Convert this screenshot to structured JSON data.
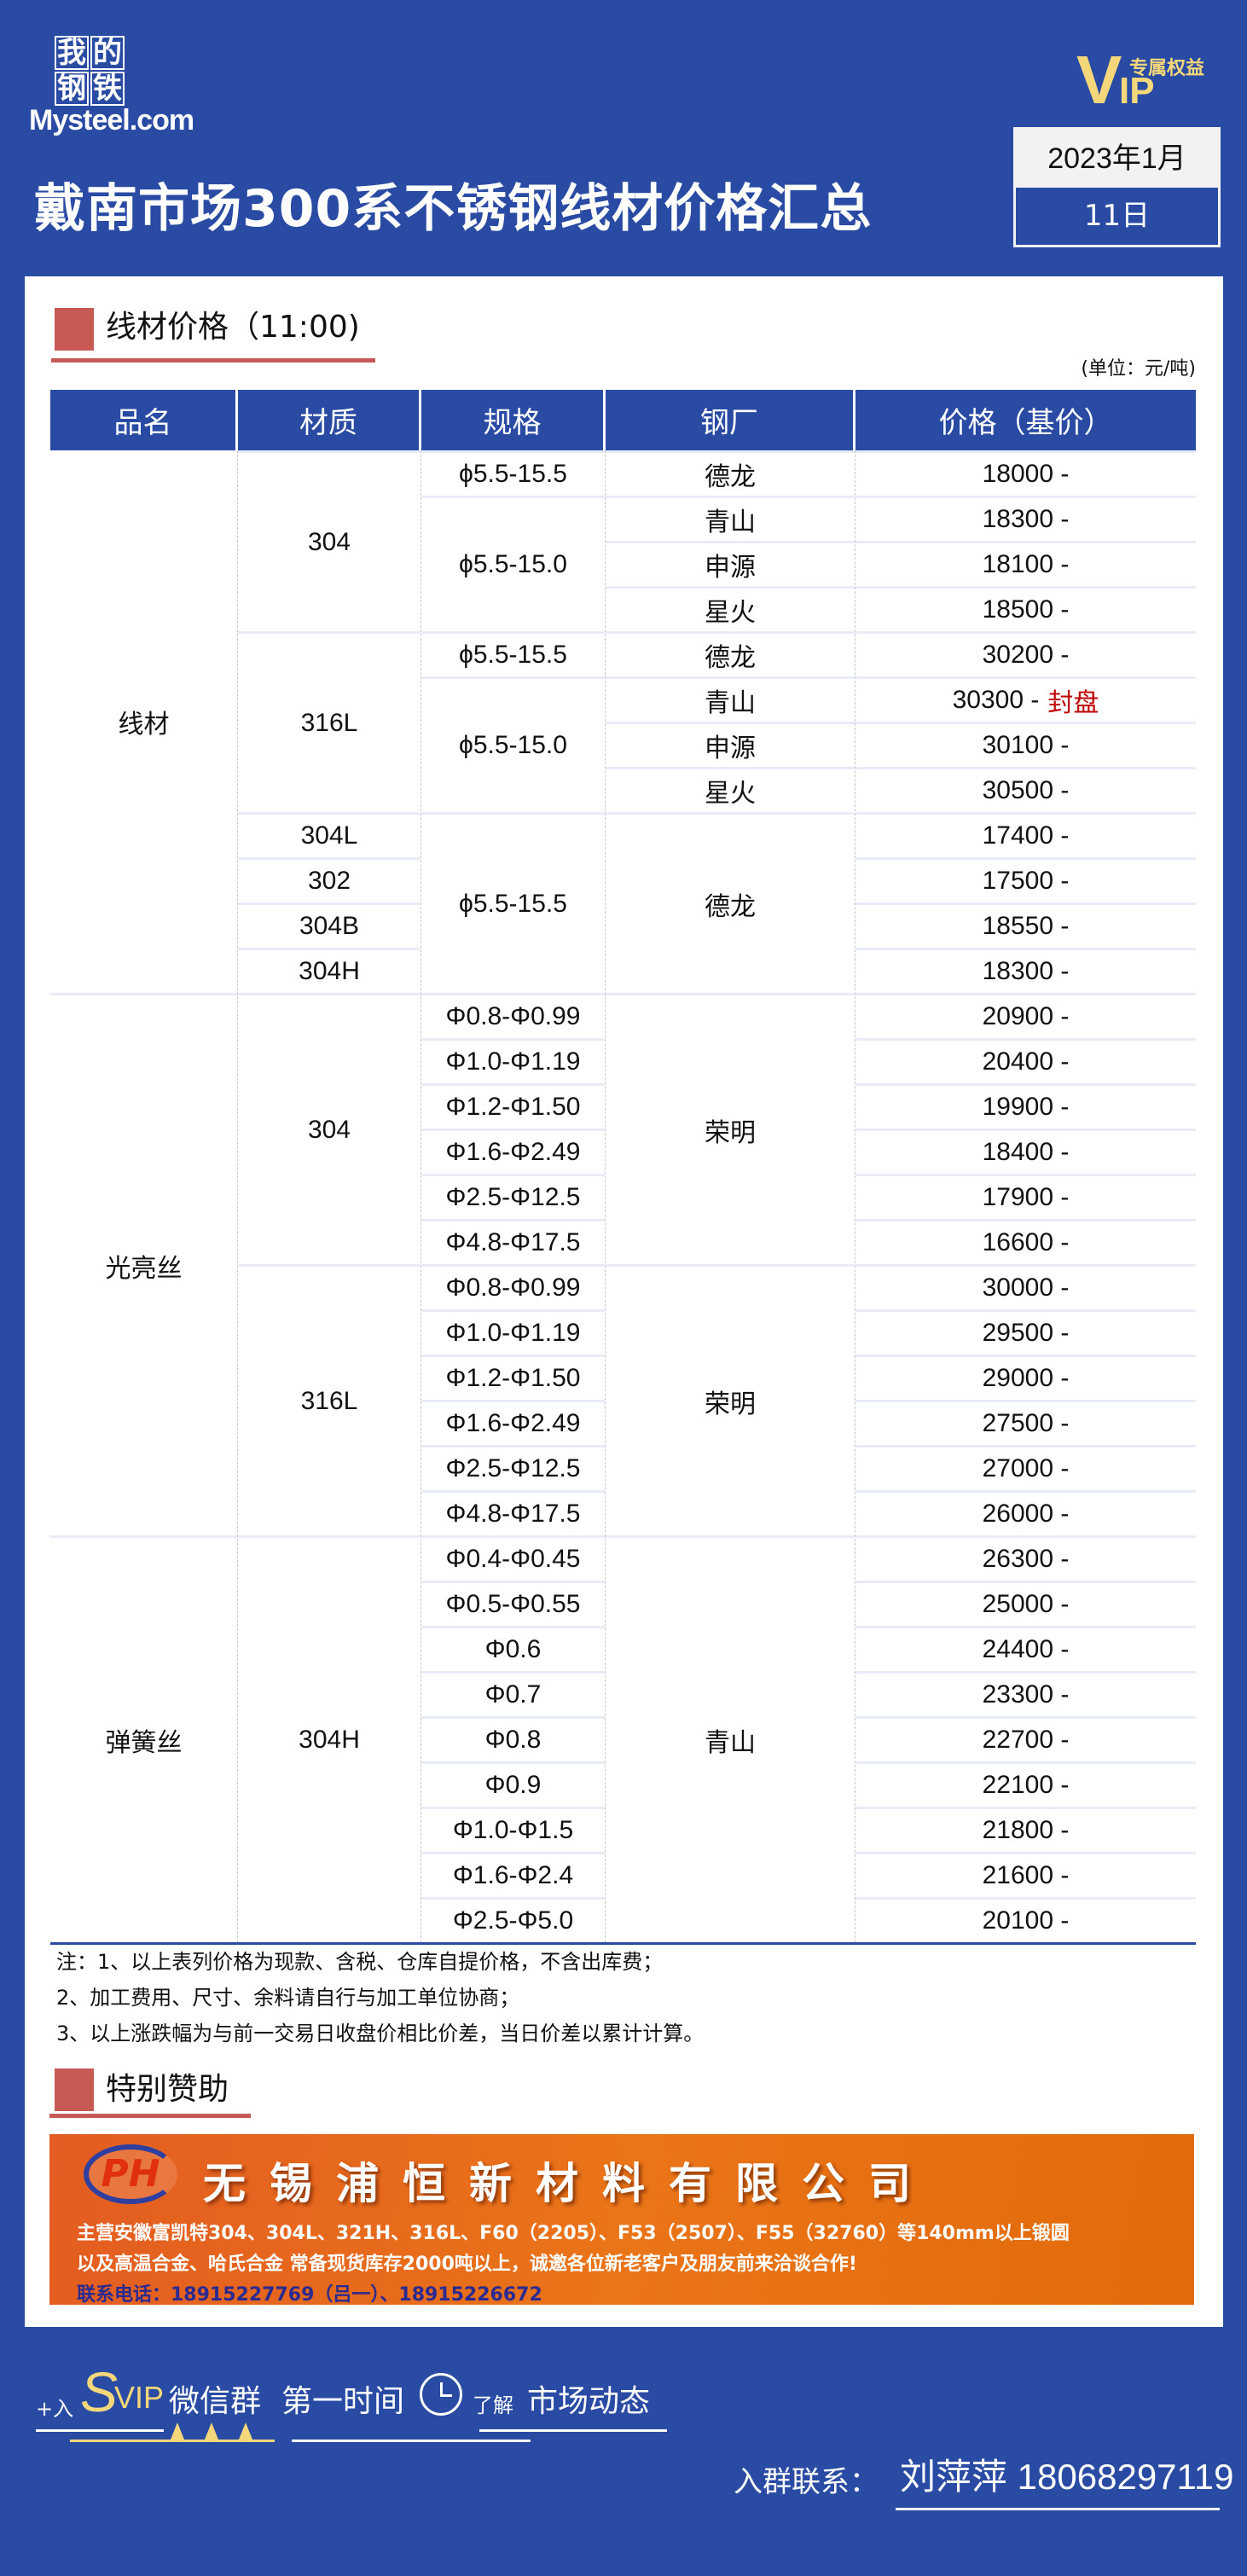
{
  "brand": {
    "logo_chars": [
      "我",
      "的",
      "钢",
      "铁"
    ],
    "logo_text": "Mysteel.com",
    "vip_letter_v": "V",
    "vip_letter_ip": "IP",
    "vip_tag": "专属权益"
  },
  "header": {
    "title": "戴南市场300系不锈钢线材价格汇总",
    "date_year_month": "2023年1月",
    "date_day": "11日"
  },
  "section1": {
    "title": "线材价格（11:00)",
    "unit": "(单位：元/吨)"
  },
  "table": {
    "headers": [
      "品名",
      "材质",
      "规格",
      "钢厂",
      "价格（基价）"
    ],
    "products": [
      {
        "v": "线材",
        "rows": 12
      },
      {
        "v": "光亮丝",
        "rows": 12
      },
      {
        "v": "弹簧丝",
        "rows": 9
      }
    ],
    "grades": [
      {
        "v": "304",
        "rows": 4
      },
      {
        "v": "316L",
        "rows": 4
      },
      {
        "v": "304L",
        "rows": 1
      },
      {
        "v": "302",
        "rows": 1
      },
      {
        "v": "304B",
        "rows": 1
      },
      {
        "v": "304H",
        "rows": 1
      },
      {
        "v": "304",
        "rows": 6
      },
      {
        "v": "316L",
        "rows": 6
      },
      {
        "v": "304H",
        "rows": 9
      }
    ],
    "specs": [
      {
        "v": "ϕ5.5-15.5",
        "rows": 1
      },
      {
        "v": "ϕ5.5-15.0",
        "rows": 3
      },
      {
        "v": "ϕ5.5-15.5",
        "rows": 1
      },
      {
        "v": "ϕ5.5-15.0",
        "rows": 3
      },
      {
        "v": "ϕ5.5-15.5",
        "rows": 4
      },
      {
        "v": "Φ0.8-Φ0.99",
        "rows": 1
      },
      {
        "v": "Φ1.0-Φ1.19",
        "rows": 1
      },
      {
        "v": "Φ1.2-Φ1.50",
        "rows": 1
      },
      {
        "v": "Φ1.6-Φ2.49",
        "rows": 1
      },
      {
        "v": "Φ2.5-Φ12.5",
        "rows": 1
      },
      {
        "v": "Φ4.8-Φ17.5",
        "rows": 1
      },
      {
        "v": "Φ0.8-Φ0.99",
        "rows": 1
      },
      {
        "v": "Φ1.0-Φ1.19",
        "rows": 1
      },
      {
        "v": "Φ1.2-Φ1.50",
        "rows": 1
      },
      {
        "v": "Φ1.6-Φ2.49",
        "rows": 1
      },
      {
        "v": "Φ2.5-Φ12.5",
        "rows": 1
      },
      {
        "v": "Φ4.8-Φ17.5",
        "rows": 1
      },
      {
        "v": "Φ0.4-Φ0.45",
        "rows": 1
      },
      {
        "v": "Φ0.5-Φ0.55",
        "rows": 1
      },
      {
        "v": "Φ0.6",
        "rows": 1
      },
      {
        "v": "Φ0.7",
        "rows": 1
      },
      {
        "v": "Φ0.8",
        "rows": 1
      },
      {
        "v": "Φ0.9",
        "rows": 1
      },
      {
        "v": "Φ1.0-Φ1.5",
        "rows": 1
      },
      {
        "v": "Φ1.6-Φ2.4",
        "rows": 1
      },
      {
        "v": "Φ2.5-Φ5.0",
        "rows": 1
      }
    ],
    "mills": [
      {
        "v": "德龙",
        "rows": 1
      },
      {
        "v": "青山",
        "rows": 1
      },
      {
        "v": "申源",
        "rows": 1
      },
      {
        "v": "星火",
        "rows": 1
      },
      {
        "v": "德龙",
        "rows": 1
      },
      {
        "v": "青山",
        "rows": 1
      },
      {
        "v": "申源",
        "rows": 1
      },
      {
        "v": "星火",
        "rows": 1
      },
      {
        "v": "德龙",
        "rows": 4
      },
      {
        "v": "荣明",
        "rows": 6
      },
      {
        "v": "荣明",
        "rows": 6
      },
      {
        "v": "青山",
        "rows": 9
      }
    ],
    "prices": [
      {
        "v": "18000 -"
      },
      {
        "v": "18300 -"
      },
      {
        "v": "18100 -"
      },
      {
        "v": "18500 -"
      },
      {
        "v": "30200 -"
      },
      {
        "v": "30300 -",
        "note": "封盘"
      },
      {
        "v": "30100 -"
      },
      {
        "v": "30500 -"
      },
      {
        "v": "17400 -"
      },
      {
        "v": "17500 -"
      },
      {
        "v": "18550 -"
      },
      {
        "v": "18300 -"
      },
      {
        "v": "20900 -"
      },
      {
        "v": "20400 -"
      },
      {
        "v": "19900 -"
      },
      {
        "v": "18400 -"
      },
      {
        "v": "17900 -"
      },
      {
        "v": "16600 -"
      },
      {
        "v": "30000 -"
      },
      {
        "v": "29500 -"
      },
      {
        "v": "29000 -"
      },
      {
        "v": "27500 -"
      },
      {
        "v": "27000 -"
      },
      {
        "v": "26000 -"
      },
      {
        "v": "26300 -"
      },
      {
        "v": "25000 -"
      },
      {
        "v": "24400 -"
      },
      {
        "v": "23300 -"
      },
      {
        "v": "22700 -"
      },
      {
        "v": "22100 -"
      },
      {
        "v": "21800 -"
      },
      {
        "v": "21600 -"
      },
      {
        "v": "20100 -"
      }
    ],
    "note_color": "#c00000"
  },
  "notes": [
    "注：1、以上表列价格为现款、含税、仓库自提价格，不含出库费；",
    "2、加工费用、尺寸、余料请自行与加工单位协商；",
    "3、以上涨跌幅为与前一交易日收盘价相比价差，当日价差以累计计算。"
  ],
  "section2": {
    "title": "特别赞助"
  },
  "banner": {
    "logo": "PH",
    "company": "无锡浦恒新材料有限公司",
    "line1": "主营安徽富凯特304、304L、321H、316L、F60（2205）、F53（2507）、F55（32760）等140mm以上锻圆",
    "line2": "以及高温合金、哈氏合金 常备现货库存2000吨以上，诚邀各位新老客户及朋友前来洽谈合作!",
    "contact": "联系电话：18915227769（吕一）、18915226672"
  },
  "footer": {
    "plus": "+入",
    "s": "S",
    "vip": "VIP",
    "wechat": "微信群",
    "first_time": "第一时间",
    "learn": "了解",
    "market": "市场动态",
    "contact_label": "入群联系：",
    "contact_value": "刘萍萍 18068297119"
  },
  "colors": {
    "background": "#2a4ba3",
    "accent_red": "#c85a56",
    "vip_gold": "#f4d77a",
    "banner_orange": "#e8691a"
  }
}
